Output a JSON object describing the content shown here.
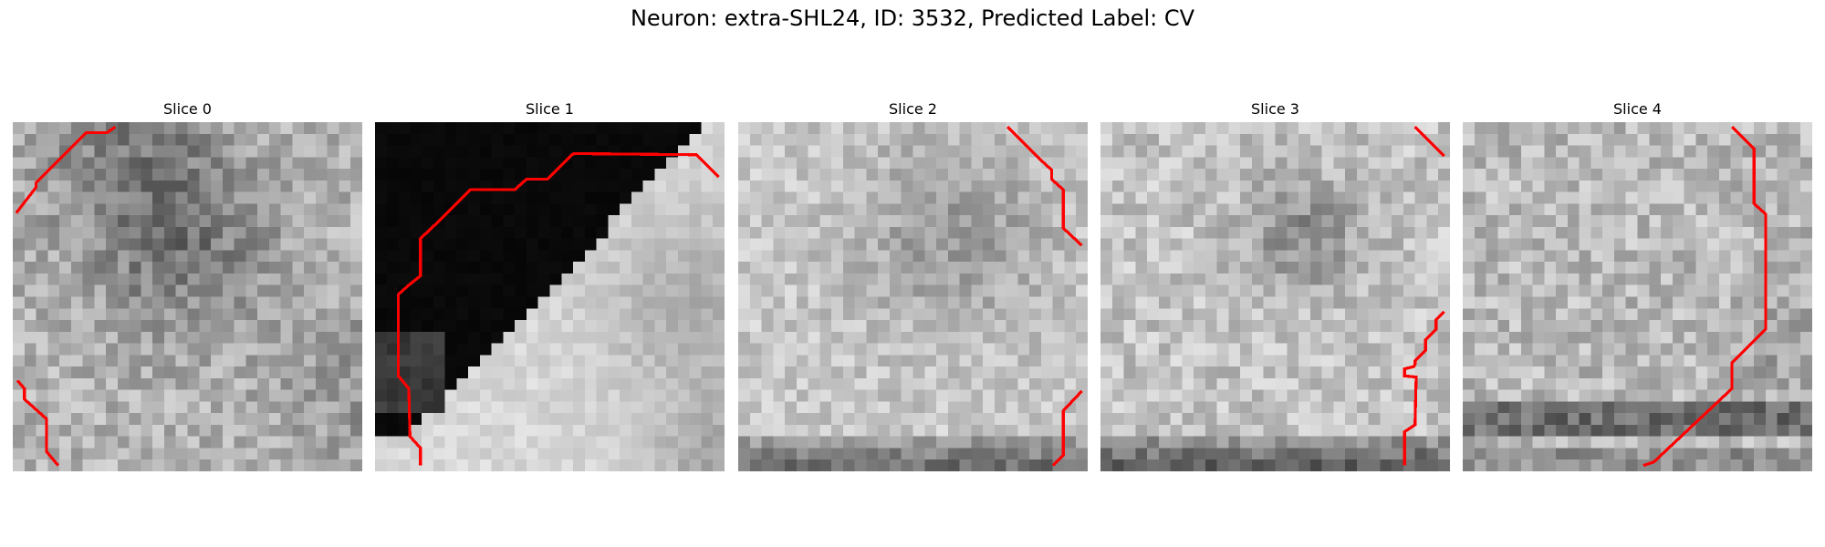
{
  "figure": {
    "title": "Neuron: extra-SHL24, ID: 3532, Predicted Label: CV"
  },
  "panels": [
    {
      "title": "Slice 0",
      "kind": "slice0"
    },
    {
      "title": "Slice 1",
      "kind": "slice1"
    },
    {
      "title": "Slice 2",
      "kind": "slice2"
    },
    {
      "title": "Slice 3",
      "kind": "slice3"
    },
    {
      "title": "Slice 4",
      "kind": "slice4"
    }
  ],
  "colors": {
    "contour": "#ff0000"
  }
}
